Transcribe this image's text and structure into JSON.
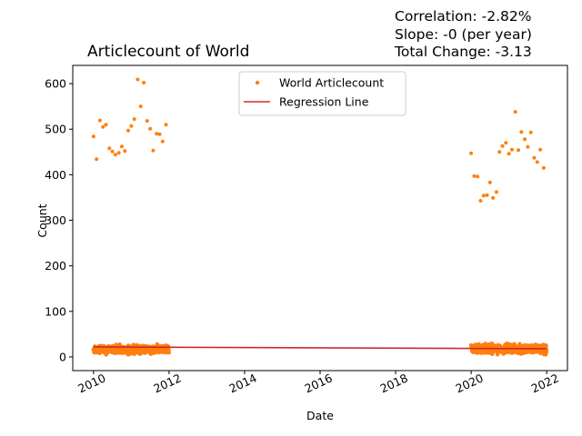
{
  "chart_data": {
    "type": "scatter",
    "title": "Articlecount of World",
    "xlabel": "Date",
    "ylabel": "Count",
    "xlim": [
      2009.45,
      2022.55
    ],
    "ylim": [
      -30,
      640
    ],
    "x_ticks": [
      {
        "value": 2010,
        "label": "2010"
      },
      {
        "value": 2012,
        "label": "2012"
      },
      {
        "value": 2014,
        "label": "2014"
      },
      {
        "value": 2016,
        "label": "2016"
      },
      {
        "value": 2018,
        "label": "2018"
      },
      {
        "value": 2020,
        "label": "2020"
      },
      {
        "value": 2022,
        "label": "2022"
      }
    ],
    "y_ticks": [
      {
        "value": 0,
        "label": "0"
      },
      {
        "value": 100,
        "label": "100"
      },
      {
        "value": 200,
        "label": "200"
      },
      {
        "value": 300,
        "label": "300"
      },
      {
        "value": 400,
        "label": "400"
      },
      {
        "value": 500,
        "label": "500"
      },
      {
        "value": 600,
        "label": "600"
      }
    ],
    "grid": false,
    "legend_position": "top-center",
    "stats": {
      "correlation": "Correlation: -2.82%",
      "slope": "Slope: -0 (per year)",
      "total_change": "Total Change: -3.13"
    },
    "series": [
      {
        "name": "World Articlecount",
        "kind": "scatter",
        "color": "#ff7f0e",
        "high_points": [
          [
            2010.0,
            484
          ],
          [
            2010.08,
            434
          ],
          [
            2010.17,
            519
          ],
          [
            2010.25,
            505
          ],
          [
            2010.33,
            510
          ],
          [
            2010.42,
            458
          ],
          [
            2010.5,
            451
          ],
          [
            2010.58,
            444
          ],
          [
            2010.67,
            448
          ],
          [
            2010.75,
            462
          ],
          [
            2010.83,
            452
          ],
          [
            2010.92,
            497
          ],
          [
            2011.0,
            507
          ],
          [
            2011.08,
            522
          ],
          [
            2011.17,
            609
          ],
          [
            2011.25,
            550
          ],
          [
            2011.33,
            602
          ],
          [
            2011.42,
            518
          ],
          [
            2011.5,
            501
          ],
          [
            2011.58,
            453
          ],
          [
            2011.67,
            490
          ],
          [
            2011.75,
            489
          ],
          [
            2011.83,
            473
          ],
          [
            2011.92,
            510
          ],
          [
            2020.0,
            447
          ],
          [
            2020.08,
            397
          ],
          [
            2020.17,
            396
          ],
          [
            2020.25,
            343
          ],
          [
            2020.33,
            354
          ],
          [
            2020.42,
            355
          ],
          [
            2020.5,
            383
          ],
          [
            2020.58,
            349
          ],
          [
            2020.67,
            362
          ],
          [
            2020.75,
            450
          ],
          [
            2020.83,
            463
          ],
          [
            2020.92,
            470
          ],
          [
            2021.0,
            446
          ],
          [
            2021.08,
            455
          ],
          [
            2021.17,
            538
          ],
          [
            2021.25,
            454
          ],
          [
            2021.33,
            494
          ],
          [
            2021.42,
            478
          ],
          [
            2021.5,
            461
          ],
          [
            2021.58,
            493
          ],
          [
            2021.67,
            437
          ],
          [
            2021.75,
            428
          ],
          [
            2021.83,
            455
          ],
          [
            2021.92,
            415
          ]
        ],
        "daily_band": [
          {
            "start": 2010.0,
            "end": 2012.0,
            "min": 5,
            "max": 28
          },
          {
            "start": 2020.0,
            "end": 2022.0,
            "min": 5,
            "max": 30
          }
        ]
      },
      {
        "name": "Regression Line",
        "kind": "line",
        "color": "#d62728",
        "points": [
          [
            2010.0,
            22
          ],
          [
            2022.0,
            18
          ]
        ]
      }
    ]
  }
}
